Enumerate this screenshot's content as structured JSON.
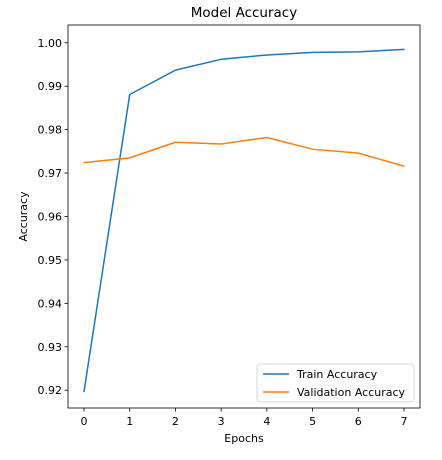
{
  "chart_data": {
    "type": "line",
    "title": "Model Accuracy",
    "xlabel": "Epochs",
    "ylabel": "Accuracy",
    "x": [
      0,
      1,
      2,
      3,
      4,
      5,
      6,
      7
    ],
    "xticks": [
      "0",
      "1",
      "2",
      "3",
      "4",
      "5",
      "6",
      "7"
    ],
    "xlim": [
      -0.35,
      7.35
    ],
    "yticks": [
      "0.92",
      "0.93",
      "0.94",
      "0.95",
      "0.96",
      "0.97",
      "0.98",
      "0.99",
      "1.00"
    ],
    "ylim": [
      0.9159,
      1.0041
    ],
    "grid": false,
    "legend_position": "lower-right",
    "series": [
      {
        "name": "Train Accuracy",
        "color": "#1f77b4",
        "values": [
          0.9197,
          0.9881,
          0.9937,
          0.9962,
          0.9972,
          0.9978,
          0.9979,
          0.9985
        ]
      },
      {
        "name": "Validation Accuracy",
        "color": "#ff7f0e",
        "values": [
          0.9724,
          0.9735,
          0.9771,
          0.9767,
          0.9782,
          0.9755,
          0.9746,
          0.9716
        ]
      }
    ]
  }
}
